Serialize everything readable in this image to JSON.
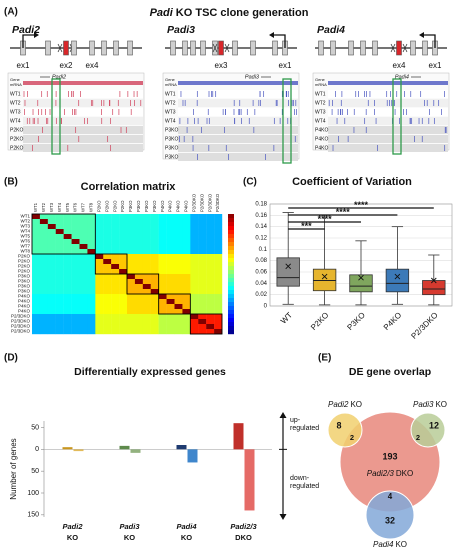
{
  "panel_labels": [
    "(A)",
    "(B)",
    "(C)",
    "(D)",
    "(E)"
  ],
  "panel_a": {
    "title": [
      "Padi",
      "KO TSC clone generation"
    ],
    "track_header": [
      "Gene",
      "mRNA"
    ],
    "genes": [
      {
        "name": "Padi2",
        "exon_labels": [
          "ex1",
          "ex2",
          "ex4"
        ],
        "rows": [
          "WT1",
          "WT2",
          "WT3",
          "WT4",
          "P2KO",
          "P2KO",
          "P2KO"
        ]
      },
      {
        "name": "Padi3",
        "exon_labels": [
          "ex3",
          "ex1"
        ],
        "rows": [
          "WT1",
          "WT2",
          "WT3",
          "WT4",
          "P3KO",
          "P3KO",
          "P3KO",
          "P3KO"
        ]
      },
      {
        "name": "Padi4",
        "exon_labels": [
          "ex4",
          "ex1"
        ],
        "rows": [
          "WT1",
          "WT2",
          "WT3",
          "WT4",
          "P4KO",
          "P4KO",
          "P4KO"
        ]
      }
    ]
  },
  "panel_b": {
    "title": "Correlation matrix",
    "groups": [
      [
        "WT1",
        "WT2",
        "WT3",
        "WT4",
        "WT5",
        "WT6",
        "WT7",
        "WT8"
      ],
      [
        "P2KO",
        "P2KO",
        "P2KO",
        "P2KO"
      ],
      [
        "P3KO",
        "P3KO",
        "P3KO",
        "P3KO"
      ],
      [
        "P4KO",
        "P4KO",
        "P4KO",
        "P4KO"
      ],
      [
        "P2/3DKO",
        "P2/3DKO",
        "P2/3DKO",
        "P2/3DKO"
      ]
    ],
    "block_values": [
      [
        0.45,
        0.4,
        0.4,
        0.38,
        0.3
      ],
      [
        0.4,
        0.68,
        0.65,
        0.62,
        0.6
      ],
      [
        0.4,
        0.65,
        0.7,
        0.66,
        0.6
      ],
      [
        0.38,
        0.62,
        0.66,
        0.7,
        0.56
      ],
      [
        0.3,
        0.6,
        0.6,
        0.56,
        0.85
      ]
    ],
    "diagonal": 1,
    "clim": [
      0,
      1
    ]
  },
  "chart_data": [
    {
      "type": "box",
      "title": "Coefficient of Variation",
      "categories": [
        "WT",
        "P2KO",
        "P3KO",
        "P4KO",
        "P2/3DKO"
      ],
      "whisker_low": [
        0.003,
        0.002,
        0.002,
        0.003,
        0.002
      ],
      "q1": [
        0.035,
        0.027,
        0.025,
        0.025,
        0.02
      ],
      "median": [
        0.05,
        0.045,
        0.035,
        0.04,
        0.03
      ],
      "q3": [
        0.085,
        0.065,
        0.055,
        0.065,
        0.045
      ],
      "whisker_high": [
        0.165,
        0.16,
        0.115,
        0.14,
        0.09
      ],
      "mean": [
        0.07,
        0.052,
        0.05,
        0.052,
        0.045
      ],
      "colors": [
        "#8a8a8a",
        "#e6b52e",
        "#7fa65e",
        "#3c7ab8",
        "#d63a2f"
      ],
      "ylim": [
        0,
        0.18
      ],
      "yticks": [
        0,
        0.02,
        0.04,
        0.06,
        0.08,
        0.1,
        0.12,
        0.14,
        0.16,
        0.18
      ],
      "grid": true,
      "significance": [
        {
          "label": "***",
          "between": [
            "WT",
            "P2KO"
          ]
        },
        {
          "label": "****",
          "between": [
            "WT",
            "P3KO"
          ]
        },
        {
          "label": "****",
          "between": [
            "WT",
            "P4KO"
          ]
        },
        {
          "label": "****",
          "between": [
            "WT",
            "P2/3DKO"
          ]
        }
      ]
    },
    {
      "type": "bar",
      "title": "Differentially expressed genes",
      "y_label": "Number of genes",
      "categories": [
        [
          "Padi2",
          "KO"
        ],
        [
          "Padi3",
          "KO"
        ],
        [
          "Padi4",
          "KO"
        ],
        [
          "Padi2/3",
          "DKO"
        ]
      ],
      "series": [
        {
          "label_lines": [
            "up-",
            "regulated"
          ],
          "values": [
            5,
            8,
            10,
            60
          ],
          "colors": [
            "#c9961e",
            "#5e8a4c",
            "#1f3b70",
            "#c0302a"
          ]
        },
        {
          "label_lines": [
            "down-",
            "regulated"
          ],
          "values": [
            -4,
            -8,
            -30,
            -140
          ],
          "colors": [
            "#e3bb5a",
            "#93b27f",
            "#3f86cc",
            "#e56a66"
          ]
        }
      ],
      "ylim": [
        -155,
        65
      ],
      "yticks": [
        50,
        0,
        {
          "value": -50,
          "label": "50"
        },
        {
          "value": -100,
          "label": "100"
        },
        {
          "value": -150,
          "label": "150"
        }
      ]
    }
  ],
  "panel_e": {
    "title": "DE gene overlap",
    "sets": [
      {
        "name": [
          "Padi2",
          "KO"
        ]
      },
      {
        "name": [
          "Padi3",
          "KO"
        ]
      },
      {
        "name": [
          "Padi2/3",
          "DKO"
        ]
      },
      {
        "name": [
          "Padi4",
          "KO"
        ]
      }
    ],
    "counts": [
      8,
      2,
      2,
      12,
      193,
      4,
      32
    ]
  }
}
